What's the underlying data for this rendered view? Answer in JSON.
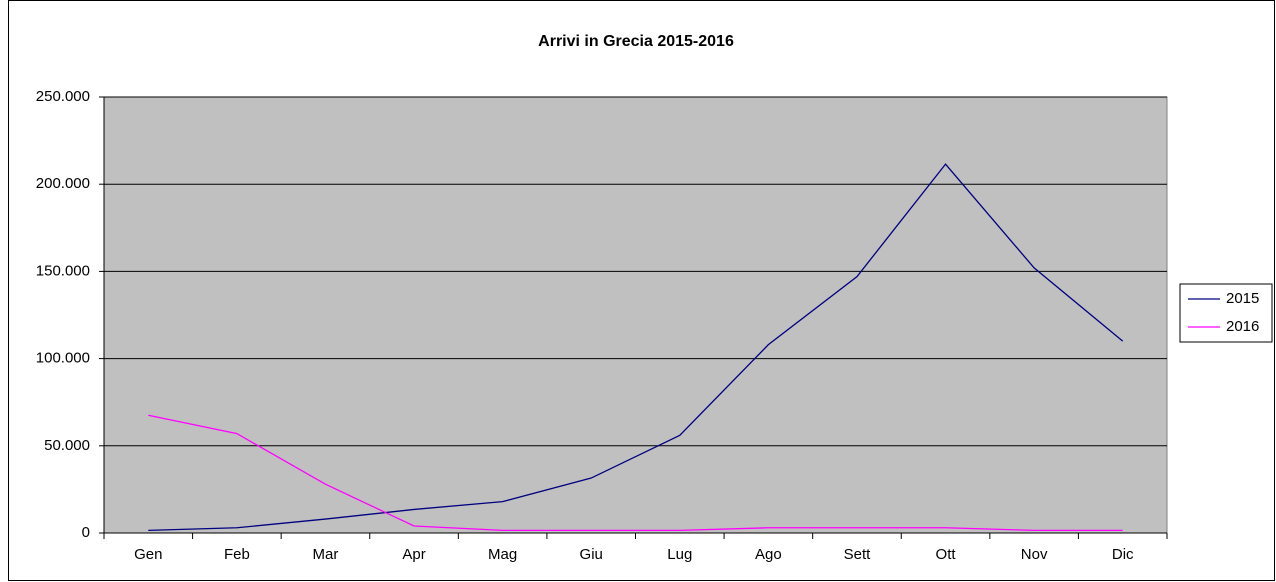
{
  "chart_data": {
    "type": "line",
    "title": "Arrivi in Grecia 2015-2016",
    "categories": [
      "Gen",
      "Feb",
      "Mar",
      "Apr",
      "Mag",
      "Giu",
      "Lug",
      "Ago",
      "Sett",
      "Ott",
      "Nov",
      "Dic"
    ],
    "series": [
      {
        "name": "2015",
        "color": "#000080",
        "values": [
          1500,
          3000,
          8000,
          13500,
          18000,
          31500,
          56000,
          108000,
          147000,
          211500,
          152000,
          110000
        ]
      },
      {
        "name": "2016",
        "color": "#ff00ff",
        "values": [
          67500,
          57000,
          28000,
          4000,
          1500,
          1500,
          1500,
          3000,
          3000,
          3000,
          1500,
          1500
        ]
      }
    ],
    "ylim": [
      0,
      250000
    ],
    "yticks": [
      0,
      {
        "value": 50000,
        "label": "50.000"
      },
      {
        "value": 100000,
        "label": "100.000"
      },
      {
        "value": 150000,
        "label": "150.000"
      },
      {
        "value": 200000,
        "label": "200.000"
      },
      {
        "value": 250000,
        "label": "250.000"
      }
    ],
    "grid": true,
    "legend": "right"
  }
}
